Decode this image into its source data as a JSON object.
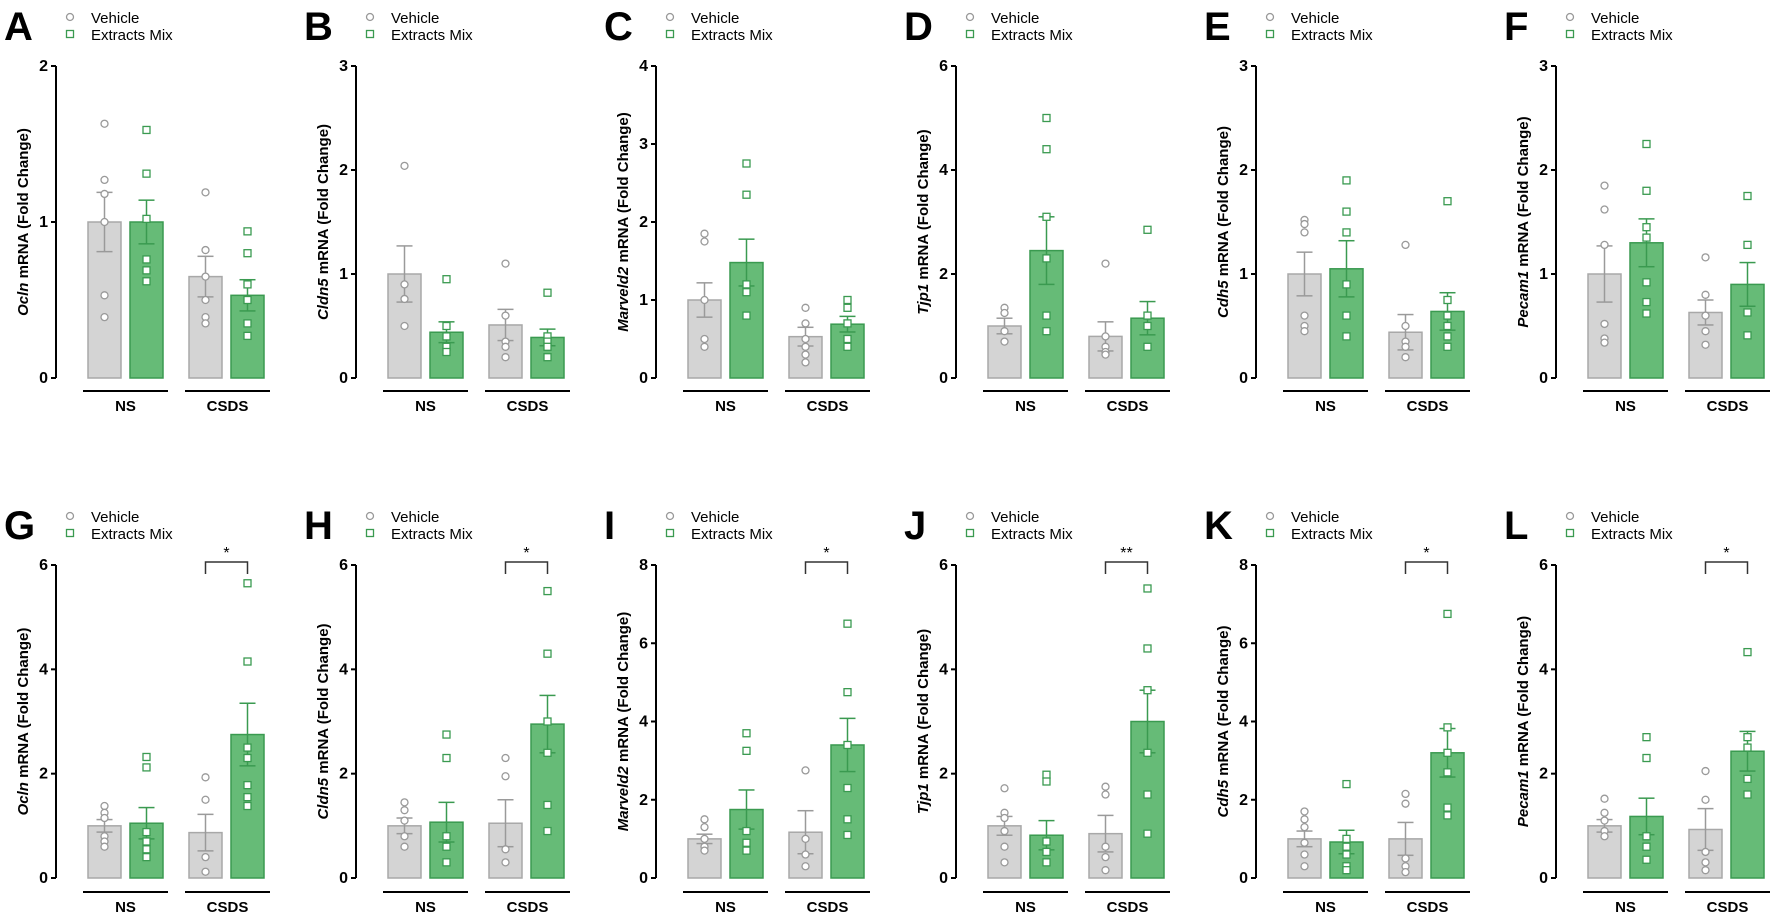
{
  "colors": {
    "vehicle_bar": "#d4d4d4",
    "vehicle_edge": "#a8a8a8",
    "extract_bar": "#66bb77",
    "extract_edge": "#3a9a50",
    "axis": "#000000"
  },
  "chart_data": [
    {
      "panel": "A",
      "type": "bar",
      "gene": "Ocln",
      "ylabel_suffix": " mRNA (Fold Change)",
      "ylim": [
        0,
        2
      ],
      "yticks": [
        0,
        1,
        2
      ],
      "groups": [
        "NS",
        "CSDS"
      ],
      "legend": [
        "Vehicle",
        "Extracts Mix"
      ],
      "sig": null,
      "series": [
        {
          "name": "Vehicle",
          "mean": [
            1.0,
            0.65
          ],
          "sem": [
            0.19,
            0.13
          ],
          "points": [
            [
              1.63,
              1.27,
              1.18,
              1.0,
              0.53,
              0.39
            ],
            [
              1.19,
              0.82,
              0.65,
              0.5,
              0.39,
              0.35
            ]
          ]
        },
        {
          "name": "Extracts Mix",
          "mean": [
            1.0,
            0.53
          ],
          "sem": [
            0.14,
            0.1
          ],
          "points": [
            [
              1.59,
              1.31,
              1.02,
              0.76,
              0.69,
              0.62
            ],
            [
              0.94,
              0.8,
              0.6,
              0.5,
              0.35,
              0.27
            ]
          ]
        }
      ]
    },
    {
      "panel": "B",
      "type": "bar",
      "gene": "Cldn5",
      "ylabel_suffix": " mRNA (Fold Change)",
      "ylim": [
        0,
        3
      ],
      "yticks": [
        0,
        1,
        2,
        3
      ],
      "groups": [
        "NS",
        "CSDS"
      ],
      "legend": [
        "Vehicle",
        "Extracts Mix"
      ],
      "sig": null,
      "series": [
        {
          "name": "Vehicle",
          "mean": [
            1.0,
            0.51
          ],
          "sem": [
            0.27,
            0.15
          ],
          "points": [
            [
              2.04,
              0.9,
              0.76,
              0.5
            ],
            [
              1.1,
              0.6,
              0.35,
              0.3,
              0.2
            ]
          ]
        },
        {
          "name": "Extracts Mix",
          "mean": [
            0.44,
            0.39
          ],
          "sem": [
            0.1,
            0.08
          ],
          "points": [
            [
              0.95,
              0.5,
              0.4,
              0.3,
              0.25
            ],
            [
              0.82,
              0.4,
              0.35,
              0.3,
              0.2
            ]
          ]
        }
      ]
    },
    {
      "panel": "C",
      "type": "bar",
      "gene": "Marveld2",
      "ylabel_suffix": " mRNA (Fold Change)",
      "ylim": [
        0,
        4
      ],
      "yticks": [
        0,
        1,
        2,
        3,
        4
      ],
      "groups": [
        "NS",
        "CSDS"
      ],
      "legend": [
        "Vehicle",
        "Extracts Mix"
      ],
      "sig": null,
      "series": [
        {
          "name": "Vehicle",
          "mean": [
            1.0,
            0.53
          ],
          "sem": [
            0.22,
            0.12
          ],
          "points": [
            [
              1.85,
              1.75,
              1.0,
              0.5,
              0.4
            ],
            [
              0.9,
              0.7,
              0.5,
              0.4,
              0.3,
              0.2
            ]
          ]
        },
        {
          "name": "Extracts Mix",
          "mean": [
            1.48,
            0.69
          ],
          "sem": [
            0.3,
            0.1
          ],
          "points": [
            [
              2.75,
              2.35,
              1.2,
              1.1,
              0.8
            ],
            [
              1.0,
              0.9,
              0.7,
              0.5,
              0.4
            ]
          ]
        }
      ]
    },
    {
      "panel": "D",
      "type": "bar",
      "gene": "Tjp1",
      "ylabel_suffix": " mRNA (Fold Change)",
      "ylim": [
        0,
        6
      ],
      "yticks": [
        0,
        2,
        4,
        6
      ],
      "groups": [
        "NS",
        "CSDS"
      ],
      "legend": [
        "Vehicle",
        "Extracts Mix"
      ],
      "sig": null,
      "series": [
        {
          "name": "Vehicle",
          "mean": [
            1.0,
            0.8
          ],
          "sem": [
            0.15,
            0.28
          ],
          "points": [
            [
              1.35,
              1.25,
              0.9,
              0.7
            ],
            [
              2.2,
              0.8,
              0.6,
              0.5,
              0.45
            ]
          ]
        },
        {
          "name": "Extracts Mix",
          "mean": [
            2.45,
            1.15
          ],
          "sem": [
            0.65,
            0.32
          ],
          "points": [
            [
              5.0,
              4.4,
              3.1,
              2.3,
              1.2,
              0.9
            ],
            [
              2.85,
              1.2,
              1.0,
              0.6
            ]
          ]
        }
      ]
    },
    {
      "panel": "E",
      "type": "bar",
      "gene": "Cdh5",
      "ylabel_suffix": " mRNA (Fold Change)",
      "ylim": [
        0,
        3
      ],
      "yticks": [
        0,
        1,
        2,
        3
      ],
      "groups": [
        "NS",
        "CSDS"
      ],
      "legend": [
        "Vehicle",
        "Extracts Mix"
      ],
      "sig": null,
      "series": [
        {
          "name": "Vehicle",
          "mean": [
            1.0,
            0.44
          ],
          "sem": [
            0.21,
            0.17
          ],
          "points": [
            [
              1.52,
              1.48,
              1.4,
              0.6,
              0.5,
              0.45
            ],
            [
              1.28,
              0.5,
              0.35,
              0.3,
              0.2
            ]
          ]
        },
        {
          "name": "Extracts Mix",
          "mean": [
            1.05,
            0.64
          ],
          "sem": [
            0.27,
            0.18
          ],
          "points": [
            [
              1.9,
              1.6,
              1.4,
              0.9,
              0.6,
              0.4
            ],
            [
              1.7,
              0.75,
              0.6,
              0.5,
              0.4,
              0.3
            ]
          ]
        }
      ]
    },
    {
      "panel": "F",
      "type": "bar",
      "gene": "Pecam1",
      "ylabel_suffix": " mRNA (Fold Change)",
      "ylim": [
        0,
        3
      ],
      "yticks": [
        0,
        1,
        2,
        3
      ],
      "groups": [
        "NS",
        "CSDS"
      ],
      "legend": [
        "Vehicle",
        "Extracts Mix"
      ],
      "sig": null,
      "series": [
        {
          "name": "Vehicle",
          "mean": [
            1.0,
            0.63
          ],
          "sem": [
            0.27,
            0.12
          ],
          "points": [
            [
              1.85,
              1.62,
              1.28,
              0.52,
              0.38,
              0.34
            ],
            [
              1.16,
              0.8,
              0.6,
              0.45,
              0.32
            ]
          ]
        },
        {
          "name": "Extracts Mix",
          "mean": [
            1.3,
            0.9
          ],
          "sem": [
            0.23,
            0.21
          ],
          "points": [
            [
              2.25,
              1.8,
              1.45,
              1.35,
              0.92,
              0.73,
              0.62
            ],
            [
              1.75,
              1.28,
              0.63,
              0.41
            ]
          ]
        }
      ]
    },
    {
      "panel": "G",
      "type": "bar",
      "gene": "Ocln",
      "ylabel_suffix": " mRNA (Fold Change)",
      "ylim": [
        0,
        6
      ],
      "yticks": [
        0,
        2,
        4,
        6
      ],
      "groups": [
        "NS",
        "CSDS"
      ],
      "legend": [
        "Vehicle",
        "Extracts Mix"
      ],
      "sig": "*",
      "series": [
        {
          "name": "Vehicle",
          "mean": [
            1.0,
            0.87
          ],
          "sem": [
            0.12,
            0.35
          ],
          "points": [
            [
              1.38,
              1.25,
              1.15,
              0.8,
              0.7,
              0.6
            ],
            [
              1.93,
              1.5,
              0.4,
              0.12
            ]
          ]
        },
        {
          "name": "Extracts Mix",
          "mean": [
            1.05,
            2.75
          ],
          "sem": [
            0.3,
            0.6
          ],
          "points": [
            [
              2.32,
              2.12,
              0.88,
              0.7,
              0.55,
              0.4
            ],
            [
              5.65,
              4.15,
              2.5,
              2.3,
              1.78,
              1.55,
              1.38
            ]
          ]
        }
      ]
    },
    {
      "panel": "H",
      "type": "bar",
      "gene": "Cldn5",
      "ylabel_suffix": " mRNA (Fold Change)",
      "ylim": [
        0,
        6
      ],
      "yticks": [
        0,
        2,
        4,
        6
      ],
      "groups": [
        "NS",
        "CSDS"
      ],
      "legend": [
        "Vehicle",
        "Extracts Mix"
      ],
      "sig": "*",
      "series": [
        {
          "name": "Vehicle",
          "mean": [
            1.0,
            1.05
          ],
          "sem": [
            0.15,
            0.45
          ],
          "points": [
            [
              1.45,
              1.3,
              1.1,
              0.8,
              0.6
            ],
            [
              2.3,
              1.95,
              0.55,
              0.3
            ]
          ]
        },
        {
          "name": "Extracts Mix",
          "mean": [
            1.07,
            2.95
          ],
          "sem": [
            0.38,
            0.55
          ],
          "points": [
            [
              2.75,
              2.3,
              0.8,
              0.6,
              0.3
            ],
            [
              5.5,
              4.3,
              3.0,
              2.4,
              1.4,
              0.9
            ]
          ]
        }
      ]
    },
    {
      "panel": "I",
      "type": "bar",
      "gene": "Marveld2",
      "ylabel_suffix": " mRNA (Fold Change)",
      "ylim": [
        0,
        8
      ],
      "yticks": [
        0,
        2,
        4,
        6,
        8
      ],
      "groups": [
        "NS",
        "CSDS"
      ],
      "legend": [
        "Vehicle",
        "Extracts Mix"
      ],
      "sig": "*",
      "series": [
        {
          "name": "Vehicle",
          "mean": [
            1.0,
            1.17
          ],
          "sem": [
            0.12,
            0.55
          ],
          "points": [
            [
              1.5,
              1.3,
              1.0,
              0.8,
              0.7
            ],
            [
              2.75,
              1.0,
              0.6,
              0.3
            ]
          ]
        },
        {
          "name": "Extracts Mix",
          "mean": [
            1.75,
            3.4
          ],
          "sem": [
            0.5,
            0.68
          ],
          "points": [
            [
              3.7,
              3.25,
              1.2,
              0.9,
              0.7
            ],
            [
              6.5,
              4.75,
              3.4,
              2.3,
              1.5,
              1.1
            ]
          ]
        }
      ]
    },
    {
      "panel": "J",
      "type": "bar",
      "gene": "Tjp1",
      "ylabel_suffix": " mRNA (Fold Change)",
      "ylim": [
        0,
        6
      ],
      "yticks": [
        0,
        2,
        4,
        6
      ],
      "groups": [
        "NS",
        "CSDS"
      ],
      "legend": [
        "Vehicle",
        "Extracts Mix"
      ],
      "sig": "**",
      "series": [
        {
          "name": "Vehicle",
          "mean": [
            1.0,
            0.85
          ],
          "sem": [
            0.18,
            0.35
          ],
          "points": [
            [
              1.72,
              1.25,
              1.15,
              0.9,
              0.6,
              0.3
            ],
            [
              1.75,
              1.6,
              0.6,
              0.4,
              0.15
            ]
          ]
        },
        {
          "name": "Extracts Mix",
          "mean": [
            0.82,
            3.0
          ],
          "sem": [
            0.28,
            0.6
          ],
          "points": [
            [
              1.98,
              1.85,
              0.7,
              0.5,
              0.3
            ],
            [
              5.55,
              4.4,
              3.6,
              2.4,
              1.6,
              0.85
            ]
          ]
        }
      ]
    },
    {
      "panel": "K",
      "type": "bar",
      "gene": "Cdh5",
      "ylabel_suffix": " mRNA (Fold Change)",
      "ylim": [
        0,
        8
      ],
      "yticks": [
        0,
        2,
        4,
        6,
        8
      ],
      "groups": [
        "NS",
        "CSDS"
      ],
      "legend": [
        "Vehicle",
        "Extracts Mix"
      ],
      "sig": "*",
      "series": [
        {
          "name": "Vehicle",
          "mean": [
            1.0,
            1.0
          ],
          "sem": [
            0.2,
            0.42
          ],
          "points": [
            [
              1.7,
              1.5,
              1.3,
              0.9,
              0.6,
              0.3
            ],
            [
              2.15,
              1.9,
              0.5,
              0.3,
              0.15
            ]
          ]
        },
        {
          "name": "Extracts Mix",
          "mean": [
            0.92,
            3.2
          ],
          "sem": [
            0.3,
            0.62
          ],
          "points": [
            [
              2.4,
              1.0,
              0.8,
              0.6,
              0.3,
              0.2
            ],
            [
              6.75,
              3.85,
              3.2,
              2.7,
              1.8,
              1.6
            ]
          ]
        }
      ]
    },
    {
      "panel": "L",
      "type": "bar",
      "gene": "Pecam1",
      "ylabel_suffix": " mRNA (Fold Change)",
      "ylim": [
        0,
        6
      ],
      "yticks": [
        0,
        2,
        4,
        6
      ],
      "groups": [
        "NS",
        "CSDS"
      ],
      "legend": [
        "Vehicle",
        "Extracts Mix"
      ],
      "sig": "*",
      "series": [
        {
          "name": "Vehicle",
          "mean": [
            1.0,
            0.93
          ],
          "sem": [
            0.12,
            0.4
          ],
          "points": [
            [
              1.52,
              1.25,
              1.1,
              0.9,
              0.8
            ],
            [
              2.05,
              1.5,
              0.5,
              0.3,
              0.15
            ]
          ]
        },
        {
          "name": "Extracts Mix",
          "mean": [
            1.18,
            2.43
          ],
          "sem": [
            0.35,
            0.38
          ],
          "points": [
            [
              2.7,
              2.3,
              0.8,
              0.6,
              0.35
            ],
            [
              4.33,
              2.7,
              2.5,
              1.9,
              1.6
            ]
          ]
        }
      ]
    }
  ]
}
